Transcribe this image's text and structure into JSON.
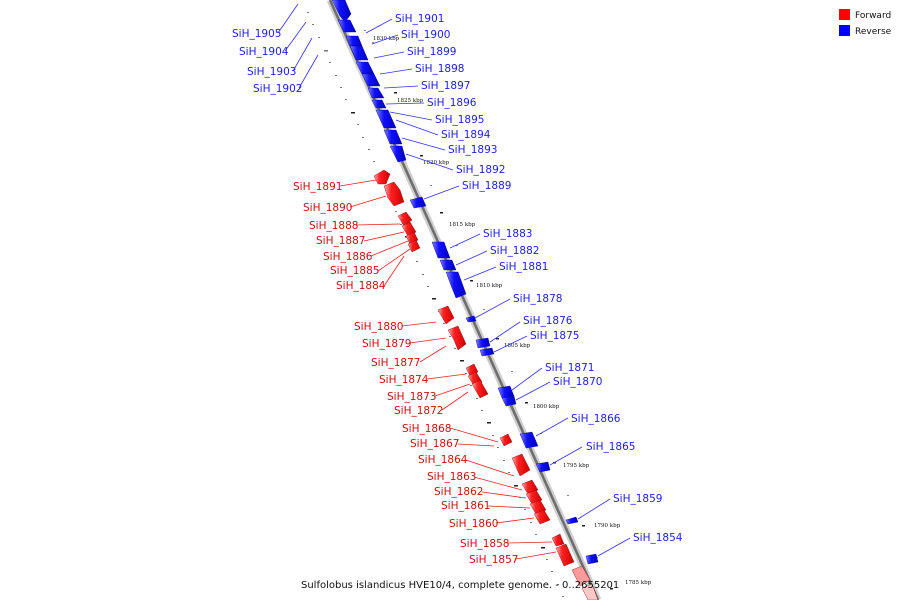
{
  "caption": "Sulfolobus islandicus HVE10/4, complete genome. - 0..2655201",
  "legend": [
    {
      "label": "Forward",
      "color": "#ff0000"
    },
    {
      "label": "Reverse",
      "color": "#0000ff"
    }
  ],
  "scale_labels": [
    "1830 kbp",
    "1825 kbp",
    "1820 kbp",
    "1815 kbp",
    "1810 kbp",
    "1805 kbp",
    "1800 kbp",
    "1795 kbp",
    "1790 kbp",
    "1785 kbp"
  ],
  "reverse_genes": [
    "SiH_1905",
    "SiH_1904",
    "SiH_1903",
    "SiH_1902",
    "SiH_1901",
    "SiH_1900",
    "SiH_1899",
    "SiH_1898",
    "SiH_1897",
    "SiH_1896",
    "SiH_1895",
    "SiH_1894",
    "SiH_1893",
    "SiH_1892",
    "SiH_1889",
    "SiH_1883",
    "SiH_1882",
    "SiH_1881",
    "SiH_1878",
    "SiH_1876",
    "SiH_1875",
    "SiH_1871",
    "SiH_1870",
    "SiH_1866",
    "SiH_1865",
    "SiH_1859",
    "SiH_1854"
  ],
  "forward_genes": [
    "SiH_1891",
    "SiH_1890",
    "SiH_1888",
    "SiH_1887",
    "SiH_1886",
    "SiH_1885",
    "SiH_1884",
    "SiH_1880",
    "SiH_1879",
    "SiH_1877",
    "SiH_1874",
    "SiH_1873",
    "SiH_1872",
    "SiH_1868",
    "SiH_1867",
    "SiH_1864",
    "SiH_1863",
    "SiH_1862",
    "SiH_1861",
    "SiH_1860",
    "SiH_1858",
    "SiH_1857"
  ]
}
